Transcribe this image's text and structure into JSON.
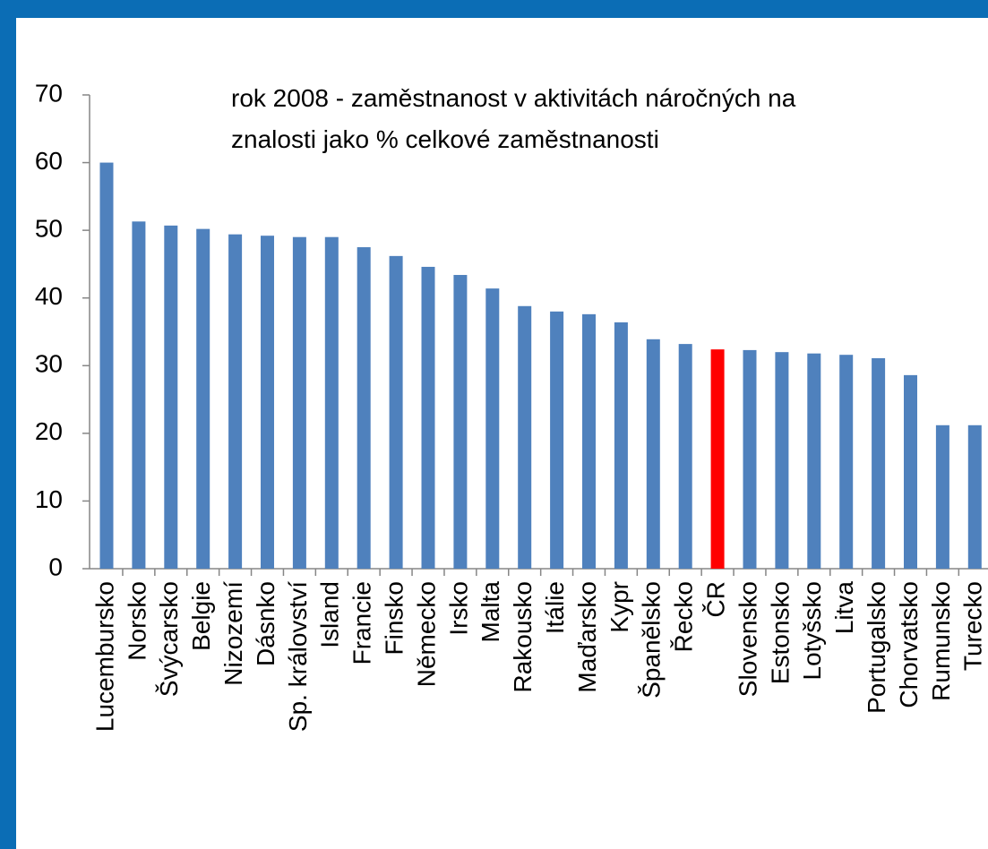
{
  "chart_data": {
    "type": "bar",
    "title": "rok 2008 - zaměstnanost v aktivitách náročných na znalosti jako % celkové zaměstnanosti",
    "categories": [
      "Lucembursko",
      "Norsko",
      "Švýcarsko",
      "Belgie",
      "Nizozemí",
      "Dásnko",
      "Sp. království",
      "Island",
      "Francie",
      "Finsko",
      "Německo",
      "Irsko",
      "Malta",
      "Rakousko",
      "Itálie",
      "Maďarsko",
      "Kypr",
      "Španělsko",
      "Řecko",
      "ČR",
      "Slovensko",
      "Estonsko",
      "Lotyšsko",
      "Litva",
      "Portugalsko",
      "Chorvatsko",
      "Rumunsko",
      "Turecko"
    ],
    "values": [
      60,
      51.3,
      50.7,
      50.2,
      49.4,
      49.2,
      49.0,
      49.0,
      47.5,
      46.2,
      44.6,
      43.4,
      41.4,
      38.8,
      38.0,
      37.6,
      36.4,
      33.9,
      33.2,
      32.4,
      32.3,
      32.0,
      31.8,
      31.6,
      31.1,
      28.6,
      21.2,
      21.2
    ],
    "colors": [
      "#4f81bd",
      "#4f81bd",
      "#4f81bd",
      "#4f81bd",
      "#4f81bd",
      "#4f81bd",
      "#4f81bd",
      "#4f81bd",
      "#4f81bd",
      "#4f81bd",
      "#4f81bd",
      "#4f81bd",
      "#4f81bd",
      "#4f81bd",
      "#4f81bd",
      "#4f81bd",
      "#4f81bd",
      "#4f81bd",
      "#4f81bd",
      "#ff0000",
      "#4f81bd",
      "#4f81bd",
      "#4f81bd",
      "#4f81bd",
      "#4f81bd",
      "#4f81bd",
      "#4f81bd",
      "#4f81bd"
    ],
    "ylim": [
      0,
      70
    ],
    "yticks": [
      0,
      10,
      20,
      30,
      40,
      50,
      60,
      70
    ],
    "grid": false
  }
}
